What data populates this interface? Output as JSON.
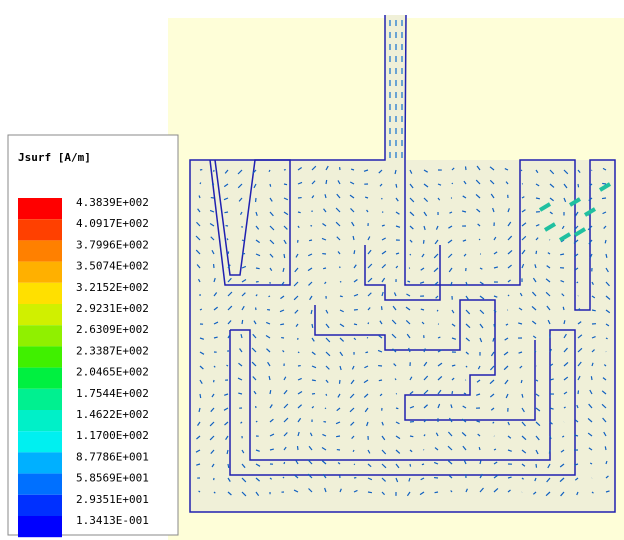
{
  "legend": {
    "title": "Jsurf [A/m]",
    "entries": [
      {
        "label": "4.3839E+002",
        "color": "#ff0000"
      },
      {
        "label": "4.0917E+002",
        "color": "#ff4000"
      },
      {
        "label": "3.7996E+002",
        "color": "#ff8000"
      },
      {
        "label": "3.5074E+002",
        "color": "#ffb000"
      },
      {
        "label": "3.2152E+002",
        "color": "#ffe000"
      },
      {
        "label": "2.9231E+002",
        "color": "#d0f000"
      },
      {
        "label": "2.6309E+002",
        "color": "#90f000"
      },
      {
        "label": "2.3387E+002",
        "color": "#40f000"
      },
      {
        "label": "2.0465E+002",
        "color": "#00f040"
      },
      {
        "label": "1.7544E+002",
        "color": "#00f090"
      },
      {
        "label": "1.4622E+002",
        "color": "#00f0c8"
      },
      {
        "label": "1.1700E+002",
        "color": "#00f0f0"
      },
      {
        "label": "8.7786E+001",
        "color": "#00b0ff"
      },
      {
        "label": "5.8569E+001",
        "color": "#0070ff"
      },
      {
        "label": "2.9351E+001",
        "color": "#0030ff"
      },
      {
        "label": "1.3413E-001",
        "color": "#0000ff"
      }
    ]
  }
}
